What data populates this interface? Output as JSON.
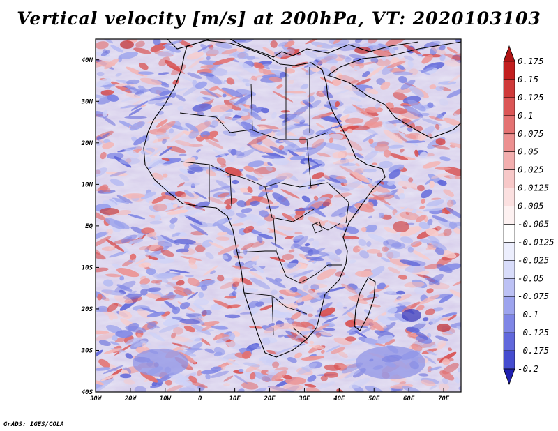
{
  "title": "Vertical velocity [m/s] at 200hPa, VT: 2020103103",
  "footer": "GrADS: IGES/COLA",
  "map": {
    "lon_range": [
      -30,
      75
    ],
    "lat_range": [
      -40,
      45
    ],
    "lon_ticks": [
      {
        "value": -30,
        "label": "30W"
      },
      {
        "value": -20,
        "label": "20W"
      },
      {
        "value": -10,
        "label": "10W"
      },
      {
        "value": 0,
        "label": "0"
      },
      {
        "value": 10,
        "label": "10E"
      },
      {
        "value": 20,
        "label": "20E"
      },
      {
        "value": 30,
        "label": "30E"
      },
      {
        "value": 40,
        "label": "40E"
      },
      {
        "value": 50,
        "label": "50E"
      },
      {
        "value": 60,
        "label": "60E"
      },
      {
        "value": 70,
        "label": "70E"
      }
    ],
    "lat_ticks": [
      {
        "value": 40,
        "label": "40N"
      },
      {
        "value": 30,
        "label": "30N"
      },
      {
        "value": 20,
        "label": "20N"
      },
      {
        "value": 10,
        "label": "10N"
      },
      {
        "value": 0,
        "label": "EQ"
      },
      {
        "value": -10,
        "label": "10S"
      },
      {
        "value": -20,
        "label": "20S"
      },
      {
        "value": -30,
        "label": "30S"
      },
      {
        "value": -40,
        "label": "40S"
      }
    ]
  },
  "colorbar": {
    "levels": [
      {
        "label": "0.175",
        "color": "#c21e1e"
      },
      {
        "label": "0.15",
        "color": "#cf3a3a"
      },
      {
        "label": "0.125",
        "color": "#db5656"
      },
      {
        "label": "0.1",
        "color": "#e47272"
      },
      {
        "label": "0.075",
        "color": "#ec9090"
      },
      {
        "label": "0.05",
        "color": "#f2aeae"
      },
      {
        "label": "0.025",
        "color": "#f7c8c8"
      },
      {
        "label": "0.0125",
        "color": "#fbe0e0"
      },
      {
        "label": "0.005",
        "color": "#fdf1f1"
      },
      {
        "label": "-0.005",
        "color": "#ffffff"
      },
      {
        "label": "-0.0125",
        "color": "#eceefd"
      },
      {
        "label": "-0.025",
        "color": "#d8dcfa"
      },
      {
        "label": "-0.05",
        "color": "#bcc1f4"
      },
      {
        "label": "-0.075",
        "color": "#9da4ee"
      },
      {
        "label": "-0.1",
        "color": "#7f86e6"
      },
      {
        "label": "-0.125",
        "color": "#6168dc"
      },
      {
        "label": "-0.175",
        "color": "#454ccf"
      },
      {
        "label": "-0.2",
        "color": "#2d30bf"
      }
    ],
    "top_arrow_color": "#b01414",
    "bottom_arrow_color": "#2020b0"
  }
}
